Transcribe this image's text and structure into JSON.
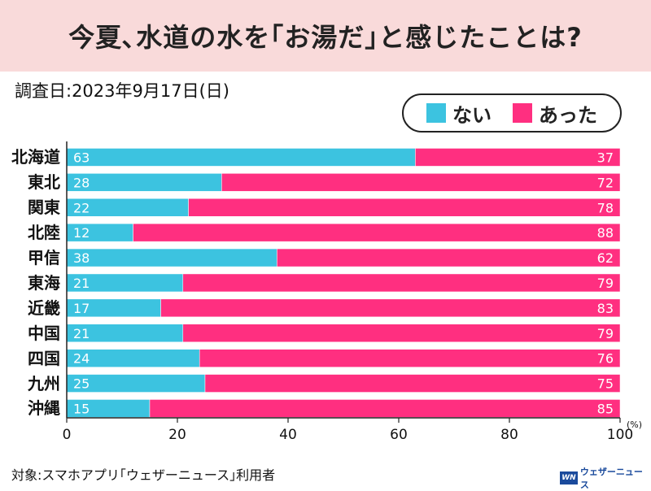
{
  "title": "今夏､水道の水を｢お湯だ｣と感じたことは?",
  "survey_date": "調査日:2023年9月17日(日)",
  "footer_note": "対象:スマホアプリ｢ウェザーニュース｣利用者",
  "brand": {
    "mark": "WN",
    "name": "ウェザーニュース"
  },
  "colors": {
    "nai": "#3cc3e0",
    "atta": "#ff2f80",
    "title_bg": "#f9dada"
  },
  "legend": [
    {
      "label": "ない",
      "color": "#3cc3e0"
    },
    {
      "label": "あった",
      "color": "#ff2f80"
    }
  ],
  "chart_data": {
    "type": "bar",
    "orientation": "horizontal",
    "stacked": true,
    "categories": [
      "北海道",
      "東北",
      "関東",
      "北陸",
      "甲信",
      "東海",
      "近畿",
      "中国",
      "四国",
      "九州",
      "沖縄"
    ],
    "series": [
      {
        "name": "ない",
        "values": [
          63,
          28,
          22,
          12,
          38,
          21,
          17,
          21,
          24,
          25,
          15
        ]
      },
      {
        "name": "あった",
        "values": [
          37,
          72,
          78,
          88,
          62,
          79,
          83,
          79,
          76,
          75,
          85
        ]
      }
    ],
    "xlim": [
      0,
      100
    ],
    "xticks": [
      "0",
      "20",
      "40",
      "60",
      "80",
      "100"
    ],
    "xunit": "(%)",
    "grid": false,
    "legend_position": "top-right"
  }
}
